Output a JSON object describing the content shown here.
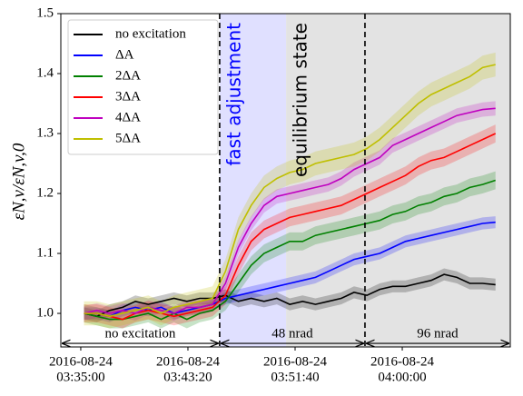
{
  "chart_data": {
    "type": "line",
    "ylabel": "εN,v/εN,v,0",
    "x": [
      "2016-08-24 03:35:15",
      "2016-08-24 03:36:15",
      "2016-08-24 03:37:15",
      "2016-08-24 03:38:15",
      "2016-08-24 03:39:15",
      "2016-08-24 03:40:15",
      "2016-08-24 03:41:15",
      "2016-08-24 03:42:15",
      "2016-08-24 03:43:15",
      "2016-08-24 03:44:15",
      "2016-08-24 03:45:15",
      "2016-08-24 03:46:15",
      "2016-08-24 03:47:15",
      "2016-08-24 03:48:15",
      "2016-08-24 03:49:15",
      "2016-08-24 03:50:15",
      "2016-08-24 03:51:15",
      "2016-08-24 03:52:15",
      "2016-08-24 03:53:15",
      "2016-08-24 03:54:15",
      "2016-08-24 03:55:15",
      "2016-08-24 03:56:15",
      "2016-08-24 03:57:15",
      "2016-08-24 03:58:15",
      "2016-08-24 03:59:15",
      "2016-08-24 04:00:15",
      "2016-08-24 04:01:15",
      "2016-08-24 04:02:15",
      "2016-08-24 04:03:15",
      "2016-08-24 04:04:15",
      "2016-08-24 04:05:15",
      "2016-08-24 04:06:15",
      "2016-08-24 04:07:15"
    ],
    "series": [
      {
        "name": "no excitation",
        "color": "#000000",
        "error": 0.01,
        "values": [
          1.0,
          0.995,
          1.005,
          1.01,
          1.02,
          1.015,
          1.02,
          1.025,
          1.02,
          1.025,
          1.025,
          1.03,
          1.02,
          1.025,
          1.02,
          1.025,
          1.015,
          1.02,
          1.015,
          1.02,
          1.025,
          1.035,
          1.03,
          1.04,
          1.045,
          1.045,
          1.05,
          1.055,
          1.065,
          1.06,
          1.05,
          1.05,
          1.048
        ]
      },
      {
        "name": "ΔA",
        "color": "#0000ff",
        "error": 0.01,
        "values": [
          1.0,
          1.0,
          0.995,
          1.005,
          1.01,
          1.005,
          1.01,
          1.0,
          1.005,
          1.01,
          1.015,
          1.025,
          1.03,
          1.035,
          1.04,
          1.045,
          1.05,
          1.055,
          1.06,
          1.07,
          1.08,
          1.09,
          1.095,
          1.1,
          1.11,
          1.12,
          1.125,
          1.13,
          1.135,
          1.14,
          1.145,
          1.15,
          1.152
        ]
      },
      {
        "name": "2ΔA",
        "color": "#008000",
        "error": 0.015,
        "values": [
          1.0,
          0.995,
          0.99,
          0.99,
          0.995,
          1.0,
          0.99,
          1.0,
          0.99,
          1.0,
          1.005,
          1.02,
          1.05,
          1.08,
          1.1,
          1.11,
          1.12,
          1.12,
          1.13,
          1.135,
          1.14,
          1.145,
          1.15,
          1.155,
          1.165,
          1.17,
          1.18,
          1.185,
          1.195,
          1.2,
          1.21,
          1.215,
          1.222
        ]
      },
      {
        "name": "3ΔA",
        "color": "#ff0000",
        "error": 0.015,
        "values": [
          1.0,
          1.0,
          0.995,
          0.99,
          1.0,
          1.005,
          1.0,
          0.995,
          1.0,
          1.005,
          1.01,
          1.03,
          1.08,
          1.12,
          1.14,
          1.15,
          1.16,
          1.165,
          1.17,
          1.175,
          1.18,
          1.19,
          1.2,
          1.21,
          1.22,
          1.23,
          1.245,
          1.255,
          1.26,
          1.27,
          1.28,
          1.29,
          1.3
        ]
      },
      {
        "name": "4ΔA",
        "color": "#bf00bf",
        "error": 0.012,
        "values": [
          1.0,
          1.005,
          1.0,
          1.005,
          1.0,
          1.01,
          1.005,
          1.0,
          1.01,
          1.01,
          1.015,
          1.05,
          1.11,
          1.15,
          1.18,
          1.195,
          1.2,
          1.205,
          1.21,
          1.215,
          1.225,
          1.24,
          1.25,
          1.26,
          1.28,
          1.29,
          1.3,
          1.31,
          1.32,
          1.33,
          1.335,
          1.34,
          1.342
        ]
      },
      {
        "name": "5ΔA",
        "color": "#bfbf00",
        "error": 0.02,
        "values": [
          1.0,
          1.0,
          0.995,
          1.0,
          1.005,
          1.01,
          1.0,
          1.01,
          1.015,
          1.02,
          1.025,
          1.07,
          1.14,
          1.18,
          1.21,
          1.225,
          1.235,
          1.24,
          1.25,
          1.255,
          1.26,
          1.265,
          1.275,
          1.29,
          1.31,
          1.33,
          1.35,
          1.365,
          1.375,
          1.385,
          1.395,
          1.41,
          1.415
        ]
      }
    ],
    "xlim": [
      "2016-08-24 03:33:27",
      "2016-08-24 04:08:24"
    ],
    "xticks": [
      {
        "value": "2016-08-24 03:35:00",
        "label": [
          "2016-08-24",
          "03:35:00"
        ]
      },
      {
        "value": "2016-08-24 03:43:20",
        "label": [
          "2016-08-24",
          "03:43:20"
        ]
      },
      {
        "value": "2016-08-24 03:51:40",
        "label": [
          "2016-08-24",
          "03:51:40"
        ]
      },
      {
        "value": "2016-08-24 04:00:00",
        "label": [
          "2016-08-24",
          "04:00:00"
        ]
      }
    ],
    "ylim": [
      0.944,
      1.5
    ],
    "yticks": [
      {
        "value": 1.0,
        "label": "1.0"
      },
      1.1,
      1.2,
      1.3,
      1.4,
      1.5
    ],
    "legend": "upper left",
    "regions": [
      {
        "start": "2016-08-24 03:45:48",
        "end": "2016-08-24 03:50:58",
        "color": "#e0e0ff",
        "label": "fast adjustment",
        "label_color": "#0000ff"
      },
      {
        "start": "2016-08-24 03:50:58",
        "end": "2016-08-24 04:08:24",
        "color": "#e3e3e3",
        "label": "equilibrium state",
        "label_color": "#000000"
      }
    ],
    "vlines": [
      "2016-08-24 03:45:48",
      "2016-08-24 03:57:06"
    ],
    "spans": [
      {
        "start": "2016-08-24 03:33:27",
        "end": "2016-08-24 03:45:48",
        "y": 0.95,
        "label": "no excitation"
      },
      {
        "start": "2016-08-24 03:45:48",
        "end": "2016-08-24 03:57:06",
        "y": 0.95,
        "label": "48 nrad"
      },
      {
        "start": "2016-08-24 03:57:06",
        "end": "2016-08-24 04:08:24",
        "y": 0.95,
        "label": "96 nrad"
      }
    ]
  }
}
